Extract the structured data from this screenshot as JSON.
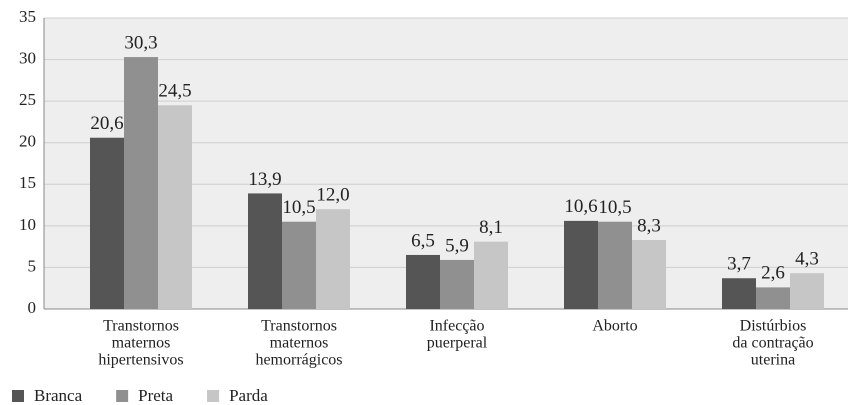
{
  "chart_data": {
    "type": "bar",
    "categories": [
      [
        "Transtornos",
        "maternos",
        "hipertensivos"
      ],
      [
        "Transtornos",
        "maternos",
        "hemorrágicos"
      ],
      [
        "Infecção",
        "puerperal"
      ],
      [
        "Aborto"
      ],
      [
        "Distúrbios",
        "da contração",
        "uterina"
      ]
    ],
    "series": [
      {
        "name": "Branca",
        "color": "#555555",
        "values": [
          20.6,
          13.9,
          6.5,
          10.6,
          3.7
        ],
        "value_labels": [
          "20,6",
          "13,9",
          "6,5",
          "10,6",
          "3,7"
        ]
      },
      {
        "name": "Preta",
        "color": "#909090",
        "values": [
          30.3,
          10.5,
          5.9,
          10.5,
          2.6
        ],
        "value_labels": [
          "30,3",
          "10,5",
          "5,9",
          "10,5",
          "2,6"
        ]
      },
      {
        "name": "Parda",
        "color": "#c6c6c6",
        "values": [
          24.5,
          12.0,
          8.1,
          8.3,
          4.3
        ],
        "value_labels": [
          "24,5",
          "12,0",
          "8,1",
          "8,3",
          "4,3"
        ]
      }
    ],
    "ylim": [
      0,
      35
    ],
    "yticks": [
      0,
      5,
      10,
      15,
      20,
      25,
      30,
      35
    ],
    "grid": true,
    "legend": "bottom-left"
  }
}
